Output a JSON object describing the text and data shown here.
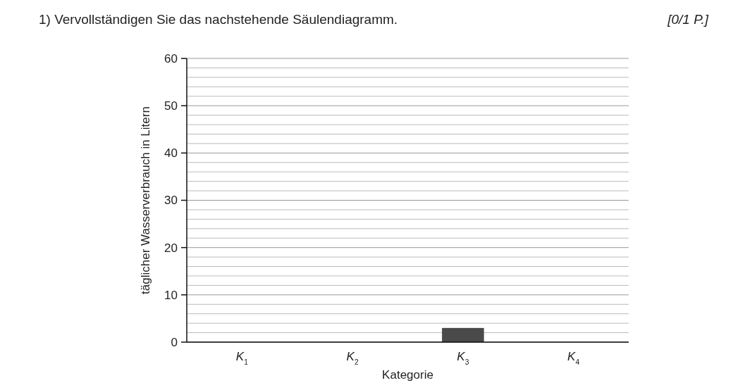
{
  "chart_data": {
    "type": "bar",
    "title": "1) Vervollständigen Sie das nachstehende Säulendiagramm.",
    "annotations": [
      "[0/1 P.]"
    ],
    "xlabel": "Kategorie",
    "ylabel": "täglicher Wasserverbrauch in Litern",
    "categories": [
      "K$_{1}$",
      "K$_{2}$",
      "K$_{3}$",
      "K$_{4}$"
    ],
    "values": [
      null,
      null,
      3,
      null
    ],
    "color": "#4a4a4a",
    "ylim": [
      0,
      60
    ],
    "yticks": [
      0,
      {
        "value": 2,
        "label": null
      },
      {
        "value": 4,
        "label": null
      },
      {
        "value": 6,
        "label": null
      },
      {
        "value": 8,
        "label": null
      },
      10,
      {
        "value": 12,
        "label": null
      },
      {
        "value": 14,
        "label": null
      },
      {
        "value": 16,
        "label": null
      },
      {
        "value": 18,
        "label": null
      },
      20,
      {
        "value": 22,
        "label": null
      },
      {
        "value": 24,
        "label": null
      },
      {
        "value": 26,
        "label": null
      },
      {
        "value": 28,
        "label": null
      },
      30,
      {
        "value": 32,
        "label": null
      },
      {
        "value": 34,
        "label": null
      },
      {
        "value": 36,
        "label": null
      },
      {
        "value": 38,
        "label": null
      },
      40,
      {
        "value": 42,
        "label": null
      },
      {
        "value": 44,
        "label": null
      },
      {
        "value": 46,
        "label": null
      },
      {
        "value": 48,
        "label": null
      },
      50,
      {
        "value": 52,
        "label": null
      },
      {
        "value": 54,
        "label": null
      },
      {
        "value": 56,
        "label": null
      },
      {
        "value": 58,
        "label": null
      },
      60
    ],
    "grid": "y"
  }
}
